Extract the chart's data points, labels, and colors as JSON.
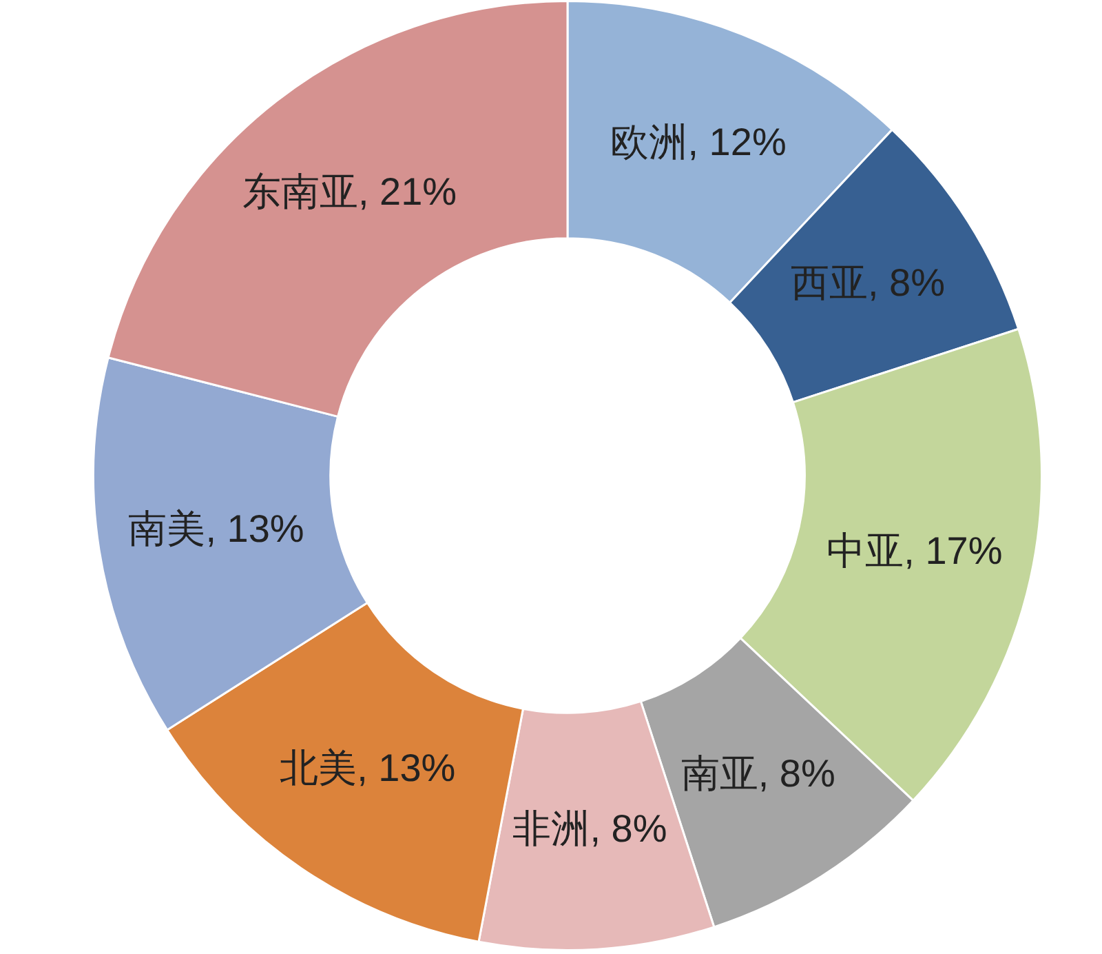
{
  "chart_data": {
    "type": "donut",
    "categories": [
      "欧洲",
      "西亚",
      "中亚",
      "南亚",
      "非洲",
      "北美",
      "南美",
      "东南亚"
    ],
    "values": [
      12,
      8,
      17,
      8,
      8,
      13,
      13,
      21
    ],
    "colors": [
      "#95b3d7",
      "#376092",
      "#c3d69b",
      "#a5a5a5",
      "#e6b9b8",
      "#dc833b",
      "#93a9d2",
      "#d59290"
    ],
    "value_labels": [
      "12%",
      "8%",
      "17%",
      "8%",
      "8%",
      "13%",
      "13%",
      "21%"
    ]
  }
}
